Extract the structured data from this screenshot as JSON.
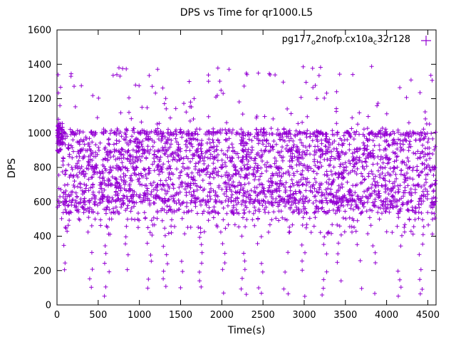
{
  "chart_data": {
    "type": "scatter",
    "title": "DPS vs Time for qr1000.L5",
    "xlabel": "Time(s)",
    "ylabel": "DPS",
    "xlim": [
      0,
      4600
    ],
    "ylim": [
      0,
      1600
    ],
    "xticks": [
      0,
      500,
      1000,
      1500,
      2000,
      2500,
      3000,
      3500,
      4000,
      4500
    ],
    "yticks": [
      0,
      200,
      400,
      600,
      800,
      1000,
      1200,
      1400,
      1600
    ],
    "grid": false,
    "legend": {
      "position": "top-right-inside",
      "series": [
        {
          "label_plain": "pg177_o2nofp.cx10a_c32r128",
          "label_parts": [
            {
              "t": "pg177"
            },
            {
              "t": "o",
              "sub": true
            },
            {
              "t": "2nofp.cx10a"
            },
            {
              "t": "c",
              "sub": true
            },
            {
              "t": "32r128"
            }
          ],
          "marker": "plus",
          "color": "#9400d3"
        }
      ]
    },
    "marker": {
      "type": "plus",
      "size": 7,
      "color": "#9400d3"
    },
    "scatter_gen": {
      "seed": 1337,
      "x_range": [
        4,
        4596
      ],
      "band_jitter": 18,
      "bands": [
        {
          "y": 1020,
          "count": 55
        },
        {
          "y": 1000,
          "count": 230
        },
        {
          "y": 985,
          "count": 70
        },
        {
          "y": 960,
          "count": 120
        },
        {
          "y": 940,
          "count": 80
        },
        {
          "y": 920,
          "count": 70
        },
        {
          "y": 900,
          "count": 160
        },
        {
          "y": 880,
          "count": 100
        },
        {
          "y": 860,
          "count": 120
        },
        {
          "y": 840,
          "count": 80
        },
        {
          "y": 820,
          "count": 60
        },
        {
          "y": 800,
          "count": 140
        },
        {
          "y": 780,
          "count": 80
        },
        {
          "y": 760,
          "count": 110
        },
        {
          "y": 740,
          "count": 70
        },
        {
          "y": 720,
          "count": 60
        },
        {
          "y": 700,
          "count": 130
        },
        {
          "y": 680,
          "count": 80
        },
        {
          "y": 660,
          "count": 120
        },
        {
          "y": 640,
          "count": 90
        },
        {
          "y": 625,
          "count": 100
        },
        {
          "y": 610,
          "count": 80
        },
        {
          "y": 600,
          "count": 150
        },
        {
          "y": 588,
          "count": 60
        },
        {
          "y": 575,
          "count": 50
        },
        {
          "y": 560,
          "count": 70
        },
        {
          "y": 540,
          "count": 120
        },
        {
          "y": 500,
          "count": 45
        },
        {
          "y": 460,
          "count": 35
        },
        {
          "y": 420,
          "count": 30
        }
      ],
      "high_levels": [
        1060,
        1090,
        1120,
        1150,
        1180,
        1210,
        1240,
        1270,
        1300,
        1340,
        1380
      ],
      "high_count": 115,
      "left_cluster": {
        "x_range": [
          4,
          70
        ],
        "y_range": [
          930,
          1060
        ],
        "count": 55
      },
      "low_columns": {
        "start": 150,
        "end": 4580,
        "step": 235,
        "center_jitter": 90,
        "x_jitter": 70,
        "level_prob": 0.6,
        "levels": [
          60,
          100,
          150,
          200,
          250,
          300,
          350,
          400,
          450,
          500
        ]
      }
    }
  }
}
